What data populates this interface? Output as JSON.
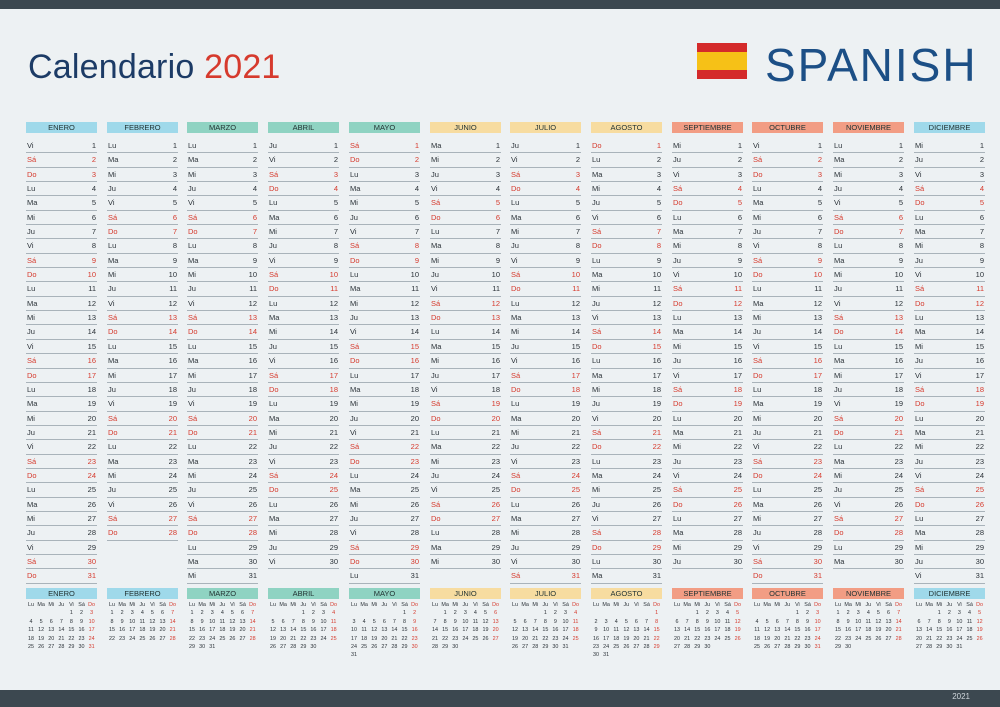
{
  "header": {
    "title": "Calendario",
    "year": "2021",
    "language_label": "SPANISH"
  },
  "footer": {
    "year": "2021"
  },
  "weekday_abbr": [
    "Lu",
    "Ma",
    "Mi",
    "Ju",
    "Vi",
    "Sá",
    "Do"
  ],
  "colors": {
    "title": "#1c3b66",
    "accent_red": "#d63a2d",
    "language": "#1c4f86",
    "bar": "#3c4850"
  },
  "months": [
    {
      "name": "ENERO",
      "days": 31,
      "start": 4,
      "color": "#9fd9ea"
    },
    {
      "name": "FEBRERO",
      "days": 28,
      "start": 0,
      "color": "#9fd9ea"
    },
    {
      "name": "MARZO",
      "days": 31,
      "start": 0,
      "color": "#8fd3c2"
    },
    {
      "name": "ABRIL",
      "days": 30,
      "start": 3,
      "color": "#8fd3c2"
    },
    {
      "name": "MAYO",
      "days": 31,
      "start": 5,
      "color": "#8fd3c2"
    },
    {
      "name": "JUNIO",
      "days": 30,
      "start": 1,
      "color": "#f7dca0"
    },
    {
      "name": "JULIO",
      "days": 31,
      "start": 3,
      "color": "#f7dca0"
    },
    {
      "name": "AGOSTO",
      "days": 31,
      "start": 6,
      "color": "#f7dca0"
    },
    {
      "name": "SEPTIEMBRE",
      "days": 30,
      "start": 2,
      "color": "#f29d84"
    },
    {
      "name": "OCTUBRE",
      "days": 31,
      "start": 4,
      "color": "#f29d84"
    },
    {
      "name": "NOVIEMBRE",
      "days": 30,
      "start": 0,
      "color": "#f29d84"
    },
    {
      "name": "DICIEMBRE",
      "days": 31,
      "start": 2,
      "color": "#9fd9ea"
    }
  ]
}
